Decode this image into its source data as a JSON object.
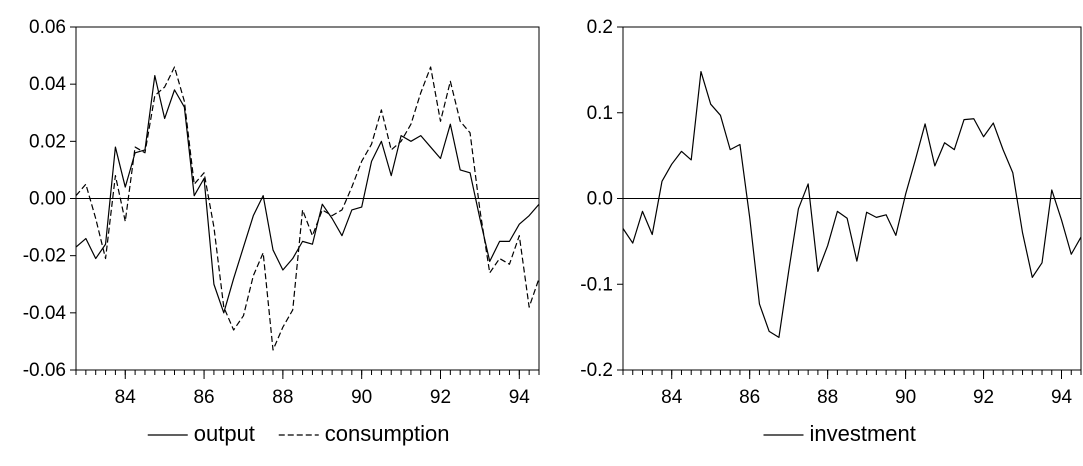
{
  "chart_data": [
    {
      "type": "line",
      "title": "",
      "xlabel": "",
      "ylabel": "",
      "xlim": [
        82.75,
        94.5
      ],
      "ylim": [
        -0.06,
        0.06
      ],
      "x_ticks": [
        "84",
        "86",
        "88",
        "90",
        "92",
        "94"
      ],
      "y_ticks": [
        "0.06",
        "0.04",
        "0.02",
        "0.00",
        "-0.02",
        "-0.04",
        "-0.06"
      ],
      "grid": false,
      "zero_line": true,
      "legend": "bottom",
      "x": [
        82.75,
        83.0,
        83.25,
        83.5,
        83.75,
        84.0,
        84.25,
        84.5,
        84.75,
        85.0,
        85.25,
        85.5,
        85.75,
        86.0,
        86.25,
        86.5,
        86.75,
        87.0,
        87.25,
        87.5,
        87.75,
        88.0,
        88.25,
        88.5,
        88.75,
        89.0,
        89.25,
        89.5,
        89.75,
        90.0,
        90.25,
        90.5,
        90.75,
        91.0,
        91.25,
        91.5,
        91.75,
        92.0,
        92.25,
        92.5,
        92.75,
        93.0,
        93.25,
        93.5,
        93.75,
        94.0,
        94.25,
        94.5
      ],
      "series": [
        {
          "name": "output",
          "dash": "solid",
          "values": [
            -0.017,
            -0.014,
            -0.021,
            -0.016,
            0.018,
            0.004,
            0.016,
            0.017,
            0.043,
            0.028,
            0.038,
            0.032,
            0.001,
            0.007,
            -0.03,
            -0.04,
            -0.028,
            -0.017,
            -0.006,
            0.001,
            -0.018,
            -0.025,
            -0.021,
            -0.015,
            -0.016,
            -0.002,
            -0.007,
            -0.013,
            -0.004,
            -0.003,
            0.013,
            0.02,
            0.008,
            0.022,
            0.02,
            0.022,
            0.018,
            0.014,
            0.026,
            0.01,
            0.009,
            -0.007,
            -0.022,
            -0.015,
            -0.015,
            -0.009,
            -0.006,
            -0.002
          ]
        },
        {
          "name": "consumption",
          "dash": "dashed",
          "values": [
            0.001,
            0.005,
            -0.007,
            -0.021,
            0.008,
            -0.008,
            0.018,
            0.016,
            0.036,
            0.039,
            0.046,
            0.034,
            0.005,
            0.009,
            -0.01,
            -0.038,
            -0.046,
            -0.041,
            -0.027,
            -0.019,
            -0.053,
            -0.045,
            -0.039,
            -0.004,
            -0.013,
            -0.004,
            -0.006,
            -0.004,
            0.004,
            0.013,
            0.019,
            0.031,
            0.017,
            0.02,
            0.026,
            0.037,
            0.046,
            0.027,
            0.041,
            0.027,
            0.023,
            -0.004,
            -0.026,
            -0.021,
            -0.023,
            -0.013,
            -0.038,
            -0.028
          ]
        }
      ]
    },
    {
      "type": "line",
      "title": "",
      "xlabel": "",
      "ylabel": "",
      "xlim": [
        82.75,
        94.5
      ],
      "ylim": [
        -0.2,
        0.2
      ],
      "x_ticks": [
        "84",
        "86",
        "88",
        "90",
        "92",
        "94"
      ],
      "y_ticks": [
        "0.2",
        "0.1",
        "0.0",
        "-0.1",
        "-0.2"
      ],
      "grid": false,
      "zero_line": true,
      "legend": "bottom",
      "x": [
        82.75,
        83.0,
        83.25,
        83.5,
        83.75,
        84.0,
        84.25,
        84.5,
        84.75,
        85.0,
        85.25,
        85.5,
        85.75,
        86.0,
        86.25,
        86.5,
        86.75,
        87.0,
        87.25,
        87.5,
        87.75,
        88.0,
        88.25,
        88.5,
        88.75,
        89.0,
        89.25,
        89.5,
        89.75,
        90.0,
        90.25,
        90.5,
        90.75,
        91.0,
        91.25,
        91.5,
        91.75,
        92.0,
        92.25,
        92.5,
        92.75,
        93.0,
        93.25,
        93.5,
        93.75,
        94.0,
        94.25,
        94.5
      ],
      "series": [
        {
          "name": "investment",
          "dash": "solid",
          "values": [
            -0.035,
            -0.052,
            -0.015,
            -0.042,
            0.02,
            0.04,
            0.055,
            0.045,
            0.148,
            0.11,
            0.097,
            0.057,
            0.063,
            -0.022,
            -0.123,
            -0.155,
            -0.162,
            -0.085,
            -0.012,
            0.017,
            -0.085,
            -0.055,
            -0.015,
            -0.023,
            -0.073,
            -0.016,
            -0.022,
            -0.019,
            -0.043,
            0.005,
            0.045,
            0.087,
            0.038,
            0.065,
            0.057,
            0.092,
            0.093,
            0.072,
            0.088,
            0.057,
            0.03,
            -0.04,
            -0.092,
            -0.075,
            0.01,
            -0.025,
            -0.065,
            -0.045
          ]
        }
      ]
    }
  ]
}
